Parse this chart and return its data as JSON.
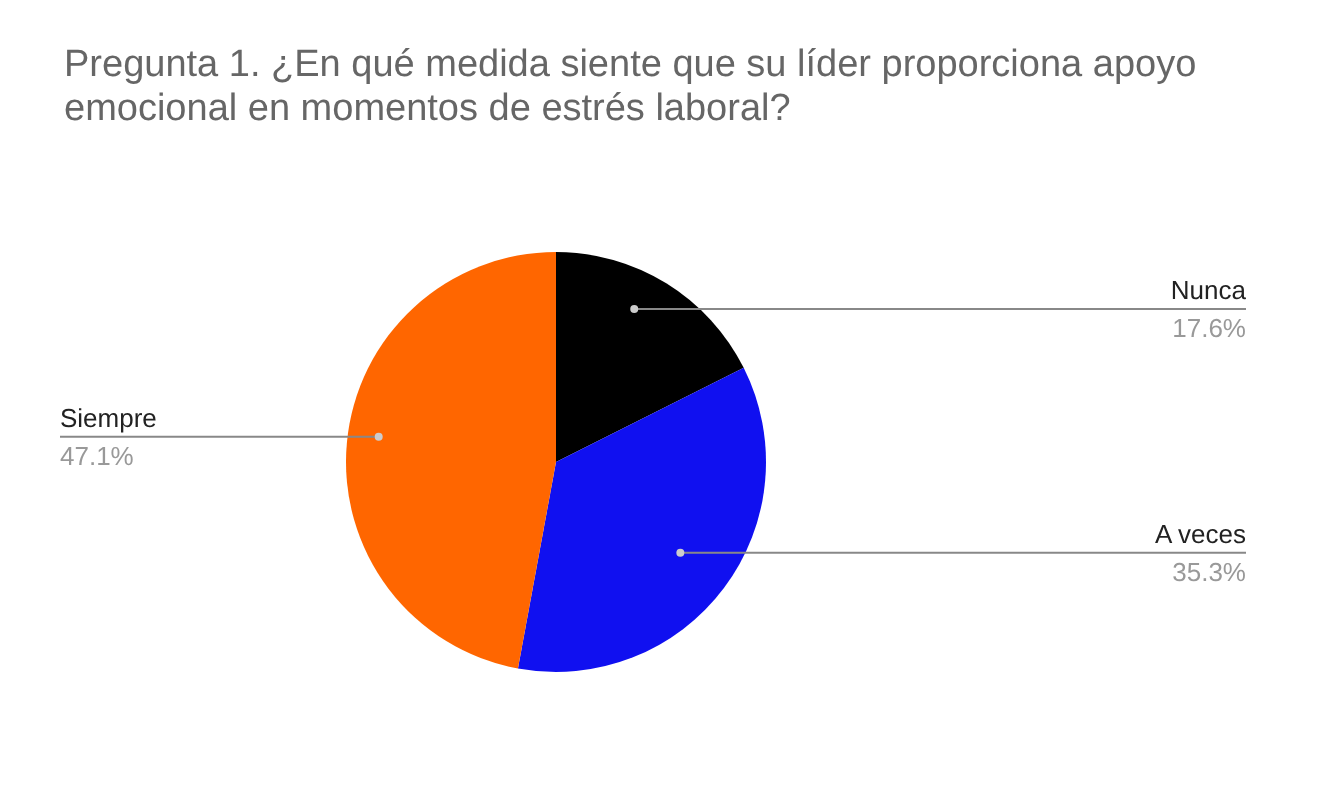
{
  "chart_data": {
    "type": "pie",
    "title": "Pregunta 1. ¿En qué medida siente que su líder proporciona apoyo emocional en momentos de estrés laboral?",
    "categories": [
      "Nunca",
      "A veces",
      "Siempre"
    ],
    "values": [
      17.6,
      35.3,
      47.1
    ],
    "colors": [
      "#000000",
      "#1010f0",
      "#ff6600"
    ],
    "value_labels": [
      "17.6%",
      "35.3%",
      "47.1%"
    ],
    "legend": false
  }
}
